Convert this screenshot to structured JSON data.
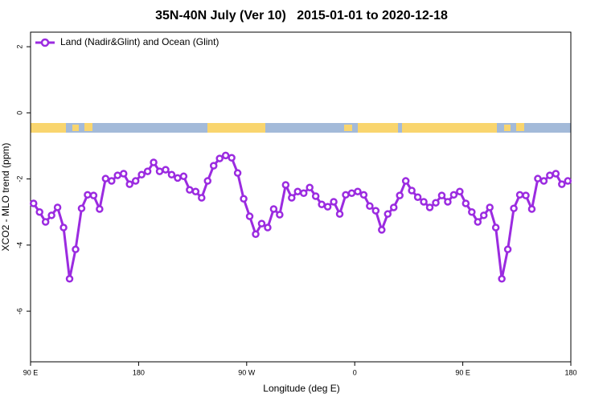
{
  "chart_data": {
    "type": "line",
    "title": "35N-40N July (Ver 10)   2015-01-01 to 2020-12-18",
    "xlabel": "Longitude (deg E)",
    "ylabel": "XCO2 - MLO trend (ppm)",
    "x": [
      92.5,
      97.5,
      102.5,
      107.5,
      112.5,
      117.5,
      122.5,
      127.5,
      132.5,
      137.5,
      142.5,
      147.5,
      152.5,
      157.5,
      162.5,
      167.5,
      172.5,
      177.5,
      182.5,
      187.5,
      192.5,
      197.5,
      202.5,
      207.5,
      212.5,
      217.5,
      222.5,
      227.5,
      232.5,
      237.5,
      242.5,
      247.5,
      252.5,
      257.5,
      262.5,
      267.5,
      272.5,
      277.5,
      282.5,
      287.5,
      292.5,
      297.5,
      302.5,
      307.5,
      312.5,
      317.5,
      322.5,
      327.5,
      332.5,
      337.5,
      342.5,
      347.5,
      352.5,
      357.5,
      362.5,
      367.5,
      372.5,
      377.5,
      382.5,
      387.5,
      392.5,
      397.5,
      402.5,
      407.5,
      412.5,
      417.5,
      422.5,
      427.5,
      432.5,
      437.5,
      442.5,
      447.5,
      452.5,
      457.5,
      462.5,
      467.5,
      472.5,
      477.5,
      482.5,
      487.5,
      492.5,
      497.5,
      502.5,
      507.5,
      512.5,
      517.5,
      522.5,
      527.5,
      532.5,
      537.5
    ],
    "series": [
      {
        "name": "Land (Nadir&Glint) and Ocean (Glint)",
        "color": "#9b2be0",
        "values": [
          -2.74,
          -3.0,
          -3.3,
          -3.1,
          -2.86,
          -3.47,
          -5.02,
          -4.13,
          -2.89,
          -2.48,
          -2.5,
          -2.91,
          -1.99,
          -2.06,
          -1.89,
          -1.84,
          -2.16,
          -2.06,
          -1.87,
          -1.77,
          -1.5,
          -1.77,
          -1.72,
          -1.87,
          -1.97,
          -1.92,
          -2.33,
          -2.38,
          -2.57,
          -2.06,
          -1.6,
          -1.38,
          -1.29,
          -1.36,
          -1.82,
          -2.6,
          -3.13,
          -3.67,
          -3.35,
          -3.47,
          -2.91,
          -3.08,
          -2.18,
          -2.57,
          -2.38,
          -2.43,
          -2.26,
          -2.52,
          -2.77,
          -2.84,
          -2.69,
          -3.06,
          -2.48,
          -2.43,
          -2.38,
          -2.48,
          -2.82,
          -2.96,
          -3.54,
          -3.06,
          -2.86,
          -2.5,
          -2.06,
          -2.35,
          -2.55,
          -2.69,
          -2.86,
          -2.72,
          -2.5,
          -2.69,
          -2.48,
          -2.38,
          -2.74,
          -3.0,
          -3.3,
          -3.1,
          -2.86,
          -3.47,
          -5.02,
          -4.13,
          -2.89,
          -2.48,
          -2.5,
          -2.91,
          -1.99,
          -2.06,
          -1.89,
          -1.84,
          -2.16,
          -2.06
        ]
      }
    ],
    "xlim": [
      90,
      540
    ],
    "xticks": [
      {
        "value": 90,
        "label": "90 E"
      },
      180,
      {
        "value": 270,
        "label": "90 W"
      },
      {
        "value": 360,
        "label": "0"
      },
      {
        "value": 450,
        "label": "90 E"
      },
      {
        "value": 540,
        "label": "180"
      }
    ],
    "ylim": [
      -7.53,
      2.44
    ],
    "yticks": [
      2,
      0,
      -2,
      -4,
      -6
    ],
    "grid": false,
    "legend": "upper left"
  }
}
